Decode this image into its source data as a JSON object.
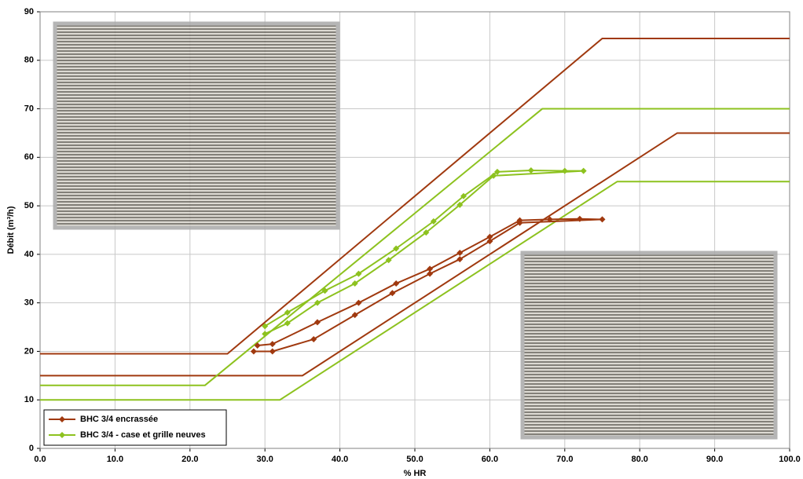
{
  "chart_data": {
    "type": "line",
    "xlabel": "% HR",
    "ylabel": "Débit (m³/h)",
    "xlim": [
      0,
      100
    ],
    "ylim": [
      0,
      90
    ],
    "xticks": [
      {
        "value": 0,
        "label": "0.0"
      },
      {
        "value": 10,
        "label": "10.0"
      },
      {
        "value": 20,
        "label": "20.0"
      },
      {
        "value": 30,
        "label": "30.0"
      },
      {
        "value": 40,
        "label": "40.0"
      },
      {
        "value": 50,
        "label": "50.0"
      },
      {
        "value": 60,
        "label": "60.0"
      },
      {
        "value": 70,
        "label": "70.0"
      },
      {
        "value": 80,
        "label": "80.0"
      },
      {
        "value": 90,
        "label": "90.0"
      },
      {
        "value": 100,
        "label": "100.0"
      }
    ],
    "yticks": [
      0,
      10,
      20,
      30,
      40,
      50,
      60,
      70,
      80,
      90
    ],
    "grid": true,
    "legend": "bottom-left",
    "series": [
      {
        "name": "BHC 3/4 encrassée",
        "color": "#a0390f",
        "x": [
          29,
          31,
          37,
          42.5,
          47.5,
          52,
          56,
          60,
          64,
          68,
          72,
          75,
          64,
          60,
          56,
          52,
          47,
          42,
          36.5,
          31,
          28.5
        ],
        "values": [
          21.2,
          21.5,
          26,
          30,
          34,
          37,
          40.3,
          43.6,
          47,
          47.2,
          47.3,
          47.2,
          46.5,
          42.7,
          39,
          36,
          32,
          27.5,
          22.5,
          20,
          20
        ]
      },
      {
        "name": "BHC 3/4 - case et grille neuves",
        "color": "#8dc21f",
        "x": [
          30,
          33,
          38,
          42.5,
          47.5,
          52.5,
          56.5,
          61,
          65.5,
          70,
          72.5,
          60.5,
          56,
          51.5,
          46.5,
          42,
          37,
          33,
          30
        ],
        "values": [
          25.2,
          28,
          32.5,
          36,
          41.2,
          46.8,
          52,
          57,
          57.3,
          57.2,
          57.2,
          56.2,
          50.2,
          44.5,
          38.8,
          34,
          30,
          25.8,
          23.6
        ]
      }
    ],
    "envelopes": [
      {
        "color": "#a0390f",
        "x": [
          0,
          25,
          75,
          100
        ],
        "values": [
          19.5,
          19.5,
          84.5,
          84.5
        ]
      },
      {
        "color": "#a0390f",
        "x": [
          0,
          35,
          85,
          100
        ],
        "values": [
          15,
          15,
          65,
          65
        ]
      },
      {
        "color": "#8dc21f",
        "x": [
          0,
          22,
          67,
          100
        ],
        "values": [
          13,
          13,
          70,
          70
        ]
      },
      {
        "color": "#8dc21f",
        "x": [
          0,
          32,
          77,
          100
        ],
        "values": [
          10,
          10,
          55,
          55
        ]
      }
    ]
  }
}
